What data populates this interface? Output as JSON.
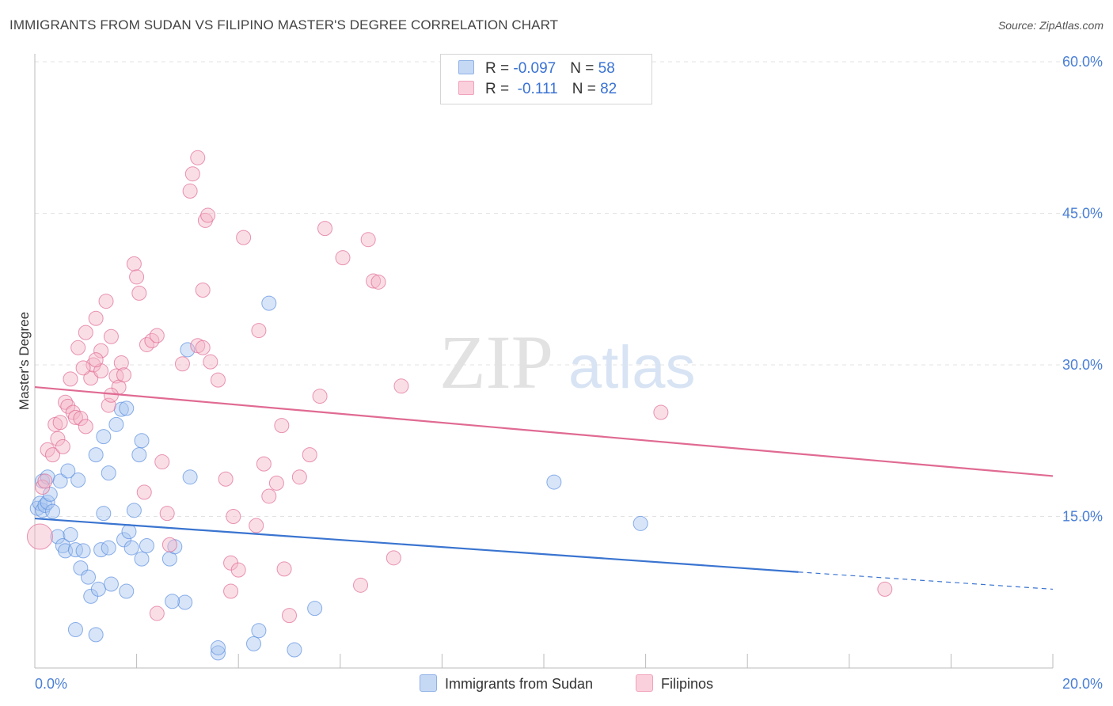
{
  "header": {
    "title": "IMMIGRANTS FROM SUDAN VS FILIPINO MASTER'S DEGREE CORRELATION CHART",
    "source": "Source: ZipAtlas.com"
  },
  "watermark": {
    "zip": "ZIP",
    "atlas": "atlas"
  },
  "legend": {
    "rows": [
      {
        "r_label": "R = ",
        "r_value": "-0.097",
        "n_label": "N = ",
        "n_value": "58",
        "color": "#a9c6ef"
      },
      {
        "r_label": "R = ",
        "r_value": " -0.111",
        "n_label": "N = ",
        "n_value": "82",
        "color": "#f5b5c8"
      }
    ]
  },
  "bottom_legend": [
    {
      "label": "Immigrants from Sudan",
      "color": "#a9c6ef"
    },
    {
      "label": "Filipinos",
      "color": "#f5b5c8"
    }
  ],
  "chart_data": {
    "type": "scatter",
    "title": "IMMIGRANTS FROM SUDAN VS FILIPINO MASTER'S DEGREE CORRELATION CHART",
    "ylabel": "Master's Degree",
    "xlabel": "",
    "xlim": [
      0,
      20
    ],
    "ylim": [
      0,
      60
    ],
    "x_tick_labels": [
      "0.0%",
      "20.0%"
    ],
    "y_ticks": [
      15,
      30,
      45,
      60
    ],
    "y_tick_labels": [
      "15.0%",
      "30.0%",
      "45.0%",
      "60.0%"
    ],
    "grid": true,
    "legend_position": "top-center",
    "series": [
      {
        "name": "Immigrants from Sudan",
        "color": "#5b8fe0",
        "fill": "#a9c6ef",
        "r": -0.097,
        "n": 58,
        "trend": {
          "x0": 0,
          "y0": 14.8,
          "x1": 15,
          "y1": 9.5,
          "dash_to_x": 20,
          "dash_to_y": 7.8
        },
        "points": [
          [
            0.05,
            15.8
          ],
          [
            0.1,
            16.3
          ],
          [
            0.15,
            15.6
          ],
          [
            0.2,
            16.1
          ],
          [
            0.25,
            16.4
          ],
          [
            0.3,
            17.2
          ],
          [
            0.35,
            15.5
          ],
          [
            0.15,
            18.5
          ],
          [
            0.25,
            18.9
          ],
          [
            0.5,
            18.5
          ],
          [
            0.65,
            19.5
          ],
          [
            0.85,
            18.6
          ],
          [
            0.45,
            13.0
          ],
          [
            0.55,
            12.1
          ],
          [
            0.6,
            11.6
          ],
          [
            0.7,
            13.2
          ],
          [
            0.8,
            11.7
          ],
          [
            0.95,
            11.6
          ],
          [
            0.9,
            9.9
          ],
          [
            1.05,
            9.0
          ],
          [
            1.1,
            7.1
          ],
          [
            1.25,
            7.8
          ],
          [
            1.5,
            8.3
          ],
          [
            1.8,
            7.6
          ],
          [
            1.3,
            11.7
          ],
          [
            1.45,
            11.9
          ],
          [
            1.75,
            12.7
          ],
          [
            1.85,
            13.5
          ],
          [
            1.9,
            11.9
          ],
          [
            2.1,
            10.8
          ],
          [
            2.2,
            12.1
          ],
          [
            2.65,
            10.8
          ],
          [
            2.75,
            12.0
          ],
          [
            2.95,
            6.5
          ],
          [
            2.7,
            6.6
          ],
          [
            1.2,
            21.1
          ],
          [
            1.45,
            19.3
          ],
          [
            1.35,
            22.9
          ],
          [
            1.6,
            24.1
          ],
          [
            1.7,
            25.6
          ],
          [
            1.8,
            25.7
          ],
          [
            1.95,
            15.6
          ],
          [
            2.05,
            21.1
          ],
          [
            2.1,
            22.5
          ],
          [
            3.0,
            31.5
          ],
          [
            3.05,
            18.9
          ],
          [
            3.6,
            1.5
          ],
          [
            3.6,
            2.0
          ],
          [
            4.3,
            2.4
          ],
          [
            4.6,
            36.1
          ],
          [
            4.4,
            3.7
          ],
          [
            5.1,
            1.8
          ],
          [
            5.5,
            5.9
          ],
          [
            0.8,
            3.8
          ],
          [
            1.2,
            3.3
          ],
          [
            1.35,
            15.3
          ],
          [
            10.2,
            18.4
          ],
          [
            11.9,
            14.3
          ]
        ]
      },
      {
        "name": "Filipinos",
        "color": "#e06a93",
        "fill": "#f5b5c8",
        "r": -0.111,
        "n": 82,
        "trend": {
          "x0": 0,
          "y0": 27.8,
          "x1": 20,
          "y1": 19.0
        },
        "points": [
          [
            0.1,
            13.0
          ],
          [
            0.15,
            17.9
          ],
          [
            0.2,
            18.5
          ],
          [
            0.25,
            21.6
          ],
          [
            0.35,
            21.1
          ],
          [
            0.4,
            24.1
          ],
          [
            0.45,
            22.7
          ],
          [
            0.5,
            24.3
          ],
          [
            0.6,
            26.3
          ],
          [
            0.65,
            25.9
          ],
          [
            0.75,
            25.3
          ],
          [
            0.8,
            24.8
          ],
          [
            0.7,
            28.6
          ],
          [
            0.85,
            31.7
          ],
          [
            0.9,
            24.7
          ],
          [
            1.0,
            23.9
          ],
          [
            1.1,
            28.7
          ],
          [
            1.15,
            30.0
          ],
          [
            1.2,
            34.6
          ],
          [
            1.3,
            29.4
          ],
          [
            1.4,
            36.3
          ],
          [
            1.5,
            32.8
          ],
          [
            1.6,
            28.9
          ],
          [
            1.65,
            27.8
          ],
          [
            1.7,
            30.2
          ],
          [
            1.3,
            31.4
          ],
          [
            1.45,
            26.0
          ],
          [
            1.0,
            33.2
          ],
          [
            1.95,
            40.0
          ],
          [
            2.0,
            38.7
          ],
          [
            2.05,
            37.1
          ],
          [
            2.2,
            32.0
          ],
          [
            2.3,
            32.4
          ],
          [
            2.4,
            32.9
          ],
          [
            2.5,
            20.4
          ],
          [
            2.6,
            15.3
          ],
          [
            2.65,
            12.2
          ],
          [
            2.9,
            30.1
          ],
          [
            3.05,
            47.2
          ],
          [
            3.1,
            48.9
          ],
          [
            3.2,
            50.5
          ],
          [
            3.35,
            44.3
          ],
          [
            3.4,
            44.8
          ],
          [
            3.3,
            37.4
          ],
          [
            3.2,
            31.9
          ],
          [
            3.3,
            31.7
          ],
          [
            3.45,
            30.3
          ],
          [
            3.6,
            28.5
          ],
          [
            3.75,
            18.7
          ],
          [
            3.9,
            15.0
          ],
          [
            3.85,
            10.4
          ],
          [
            4.0,
            9.7
          ],
          [
            3.85,
            7.6
          ],
          [
            4.1,
            42.6
          ],
          [
            4.35,
            14.1
          ],
          [
            4.5,
            20.2
          ],
          [
            4.6,
            17.0
          ],
          [
            4.75,
            18.3
          ],
          [
            4.85,
            24.0
          ],
          [
            4.9,
            9.8
          ],
          [
            5.0,
            5.2
          ],
          [
            5.2,
            18.9
          ],
          [
            5.4,
            21.1
          ],
          [
            5.6,
            26.9
          ],
          [
            5.7,
            43.5
          ],
          [
            6.05,
            40.6
          ],
          [
            6.4,
            8.2
          ],
          [
            6.55,
            42.4
          ],
          [
            6.65,
            38.3
          ],
          [
            6.75,
            38.2
          ],
          [
            7.05,
            10.9
          ],
          [
            7.2,
            27.9
          ],
          [
            4.4,
            33.4
          ],
          [
            2.4,
            5.4
          ],
          [
            1.2,
            30.5
          ],
          [
            0.55,
            21.9
          ],
          [
            0.95,
            29.7
          ],
          [
            1.75,
            29.0
          ],
          [
            2.15,
            17.4
          ],
          [
            12.3,
            25.3
          ],
          [
            16.7,
            7.8
          ],
          [
            1.5,
            27.0
          ]
        ]
      }
    ]
  }
}
